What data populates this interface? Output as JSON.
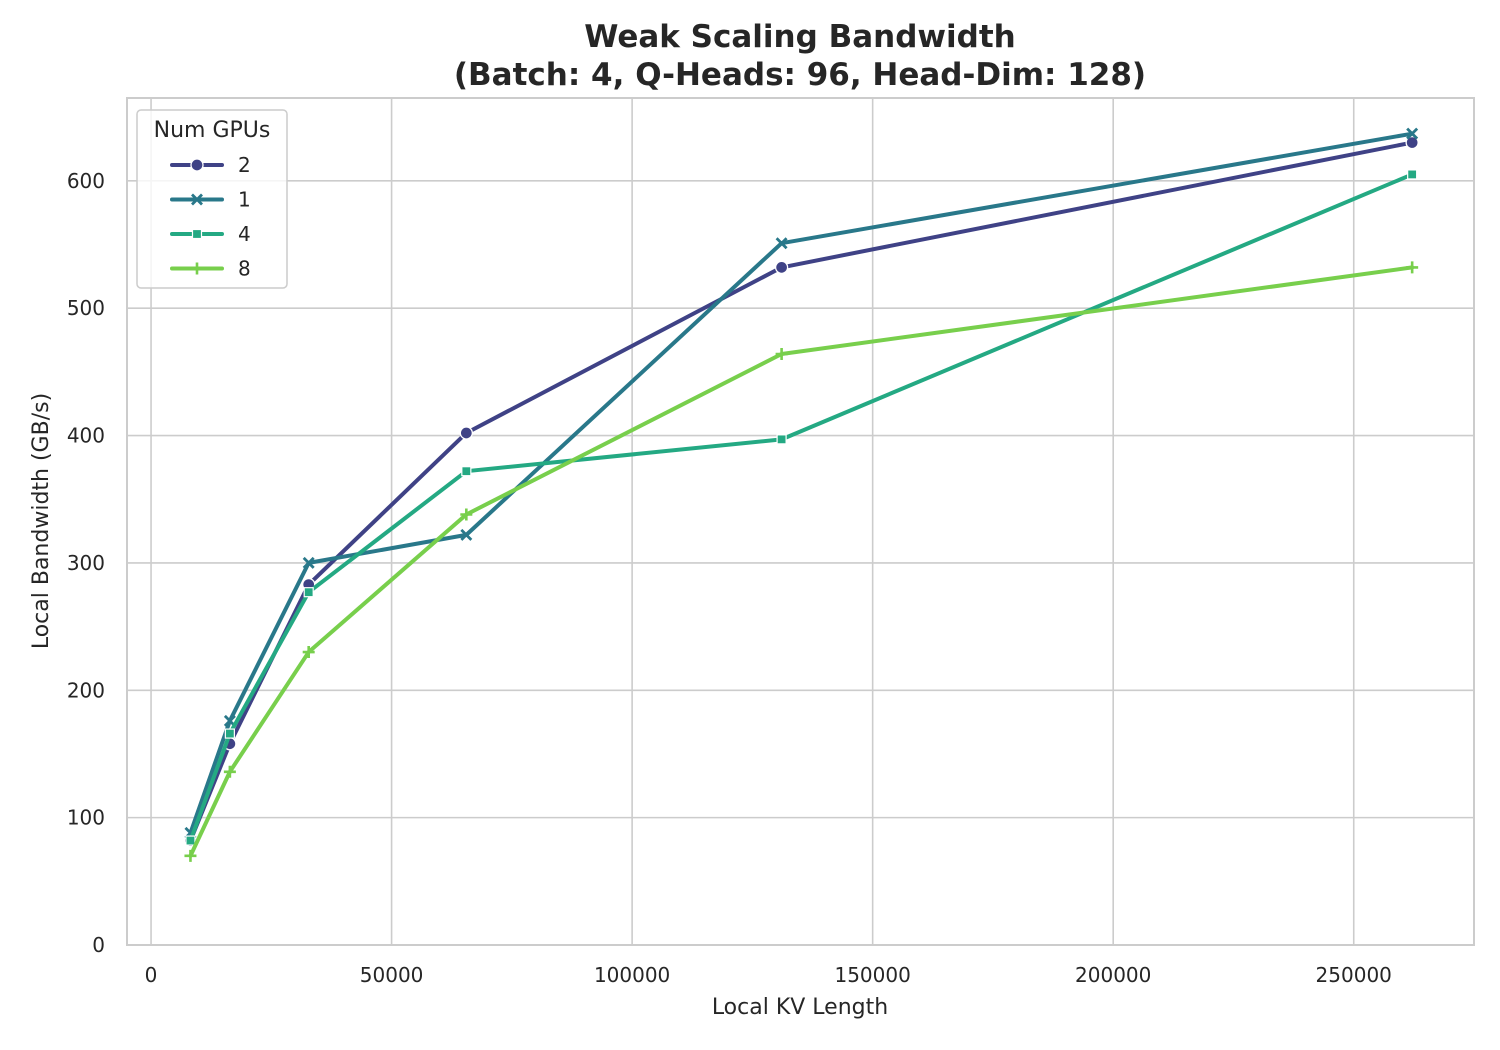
{
  "chart_data": {
    "type": "line",
    "title": "Weak Scaling Bandwidth",
    "subtitle": "(Batch: 4, Q-Heads: 96, Head-Dim: 128)",
    "xlabel": "Local KV Length",
    "ylabel": "Local Bandwidth (GB/s)",
    "xlim": [
      -5000,
      275000
    ],
    "ylim": [
      0,
      665
    ],
    "xticks": [
      0,
      50000,
      100000,
      150000,
      200000,
      250000
    ],
    "xtick_labels": [
      "0",
      "50000",
      "100000",
      "150000",
      "200000",
      "250000"
    ],
    "yticks": [
      0,
      100,
      200,
      300,
      400,
      500,
      600
    ],
    "ytick_labels": [
      "0",
      "100",
      "200",
      "300",
      "400",
      "500",
      "600"
    ],
    "grid": true,
    "legend": {
      "title": "Num GPUs",
      "placement": "top-left"
    },
    "x": [
      8192,
      16384,
      32768,
      65536,
      131072,
      262144
    ],
    "series": [
      {
        "name": "2",
        "color": "#3f4286",
        "marker": "circle",
        "values": [
          82,
          158,
          283,
          402,
          532,
          630
        ]
      },
      {
        "name": "1",
        "color": "#29788a",
        "marker": "x",
        "values": [
          88,
          176,
          300,
          322,
          551,
          637
        ]
      },
      {
        "name": "4",
        "color": "#24a983",
        "marker": "square",
        "values": [
          82,
          166,
          277,
          372,
          397,
          605
        ]
      },
      {
        "name": "8",
        "color": "#78cf4c",
        "marker": "plus",
        "values": [
          70,
          136,
          230,
          338,
          464,
          532
        ]
      }
    ]
  }
}
